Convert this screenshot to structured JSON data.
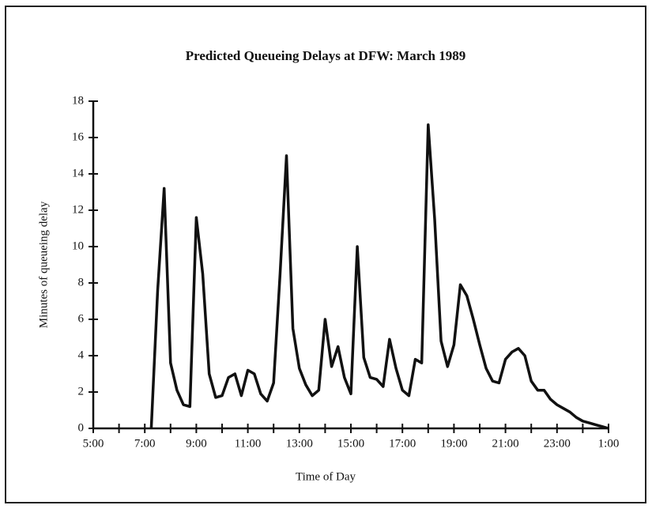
{
  "chart_data": {
    "type": "line",
    "title": "Predicted Queueing Delays at DFW: March 1989",
    "xlabel": "Time of Day",
    "ylabel": "Minutes of queueing delay",
    "xlim": [
      5,
      25
    ],
    "xticks": [
      {
        "value": 5,
        "label": "5:00"
      },
      {
        "value": 7,
        "label": "7:00"
      },
      {
        "value": 9,
        "label": "9:00"
      },
      {
        "value": 11,
        "label": "11:00"
      },
      {
        "value": 13,
        "label": "13:00"
      },
      {
        "value": 15,
        "label": "15:00"
      },
      {
        "value": 17,
        "label": "17:00"
      },
      {
        "value": 19,
        "label": "19:00"
      },
      {
        "value": 21,
        "label": "21:00"
      },
      {
        "value": 23,
        "label": "23:00"
      },
      {
        "value": 25,
        "label": "1:00"
      }
    ],
    "xminorticks": [
      6,
      8,
      10,
      12,
      14,
      16,
      18,
      20,
      22,
      24
    ],
    "ylim": [
      0,
      18
    ],
    "yticks": [
      0,
      2,
      4,
      6,
      8,
      10,
      12,
      14,
      16,
      18
    ],
    "grid": false,
    "series": [
      {
        "color": "#111111",
        "x": [
          7.25,
          7.5,
          7.75,
          8,
          8.25,
          8.5,
          8.75,
          9,
          9.25,
          9.5,
          9.75,
          10,
          10.25,
          10.5,
          10.75,
          11,
          11.25,
          11.5,
          11.75,
          12,
          12.25,
          12.5,
          12.75,
          13,
          13.25,
          13.5,
          13.75,
          14,
          14.25,
          14.5,
          14.75,
          15,
          15.25,
          15.5,
          15.75,
          16,
          16.25,
          16.5,
          16.75,
          17,
          17.25,
          17.5,
          17.75,
          18,
          18.25,
          18.5,
          18.75,
          19,
          19.25,
          19.5,
          19.75,
          20,
          20.25,
          20.5,
          20.75,
          21,
          21.25,
          21.5,
          21.75,
          22,
          22.25,
          22.5,
          22.75,
          23,
          23.25,
          23.5,
          23.75,
          24,
          24.25,
          24.5,
          24.75,
          25
        ],
        "values": [
          0,
          7.6,
          13.2,
          3.6,
          2.1,
          1.3,
          1.2,
          11.6,
          8.5,
          3.0,
          1.7,
          1.8,
          2.8,
          3.0,
          1.8,
          3.2,
          3.0,
          1.9,
          1.5,
          2.5,
          8.5,
          15.0,
          5.5,
          3.3,
          2.4,
          1.8,
          2.1,
          6.0,
          3.4,
          4.5,
          2.8,
          1.9,
          10.0,
          3.9,
          2.8,
          2.7,
          2.3,
          4.9,
          3.3,
          2.1,
          1.8,
          3.8,
          3.6,
          16.7,
          11.5,
          4.8,
          3.4,
          4.6,
          7.9,
          7.3,
          6.0,
          4.6,
          3.3,
          2.6,
          2.5,
          3.8,
          4.2,
          4.4,
          4.0,
          2.6,
          2.1,
          2.1,
          1.6,
          1.3,
          1.1,
          0.9,
          0.6,
          0.4,
          0.3,
          0.2,
          0.1,
          0.0
        ]
      }
    ]
  }
}
